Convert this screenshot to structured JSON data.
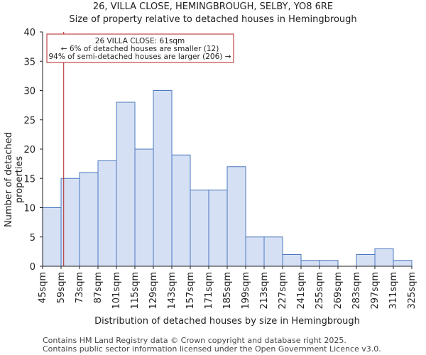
{
  "chart_data": {
    "type": "bar",
    "title": "26, VILLA CLOSE, HEMINGBROUGH, SELBY, YO8 6RE",
    "subtitle": "Size of property relative to detached houses in Hemingbrough",
    "xlabel": "Distribution of detached houses by size in Hemingbrough",
    "ylabel": "Number of detached properties",
    "bin_edges": [
      45,
      59,
      73,
      87,
      101,
      115,
      129,
      143,
      157,
      171,
      185,
      199,
      213,
      227,
      241,
      255,
      269,
      283,
      297,
      311,
      325
    ],
    "x_tick_labels": [
      "45sqm",
      "59sqm",
      "73sqm",
      "87sqm",
      "101sqm",
      "115sqm",
      "129sqm",
      "143sqm",
      "157sqm",
      "171sqm",
      "185sqm",
      "199sqm",
      "213sqm",
      "227sqm",
      "241sqm",
      "255sqm",
      "269sqm",
      "283sqm",
      "297sqm",
      "311sqm",
      "325sqm"
    ],
    "values": [
      10,
      15,
      16,
      18,
      28,
      20,
      30,
      19,
      13,
      13,
      17,
      5,
      5,
      2,
      1,
      1,
      0,
      2,
      3,
      1
    ],
    "ylim": [
      0,
      40
    ],
    "y_ticks": [
      0,
      5,
      10,
      15,
      20,
      25,
      30,
      35,
      40
    ],
    "marker_value": 61,
    "annotation": {
      "line1": "26 VILLA CLOSE: 61sqm",
      "line2": "← 6% of detached houses are smaller (12)",
      "line3": "94% of semi-detached houses are larger (206) →"
    },
    "colors": {
      "bar_fill": "#d6e0f5",
      "bar_stroke": "#4a78c0",
      "marker": "#b22222",
      "axis": "#222222"
    }
  },
  "footer": {
    "line1": "Contains HM Land Registry data © Crown copyright and database right 2025.",
    "line2": "Contains public sector information licensed under the Open Government Licence v3.0."
  }
}
